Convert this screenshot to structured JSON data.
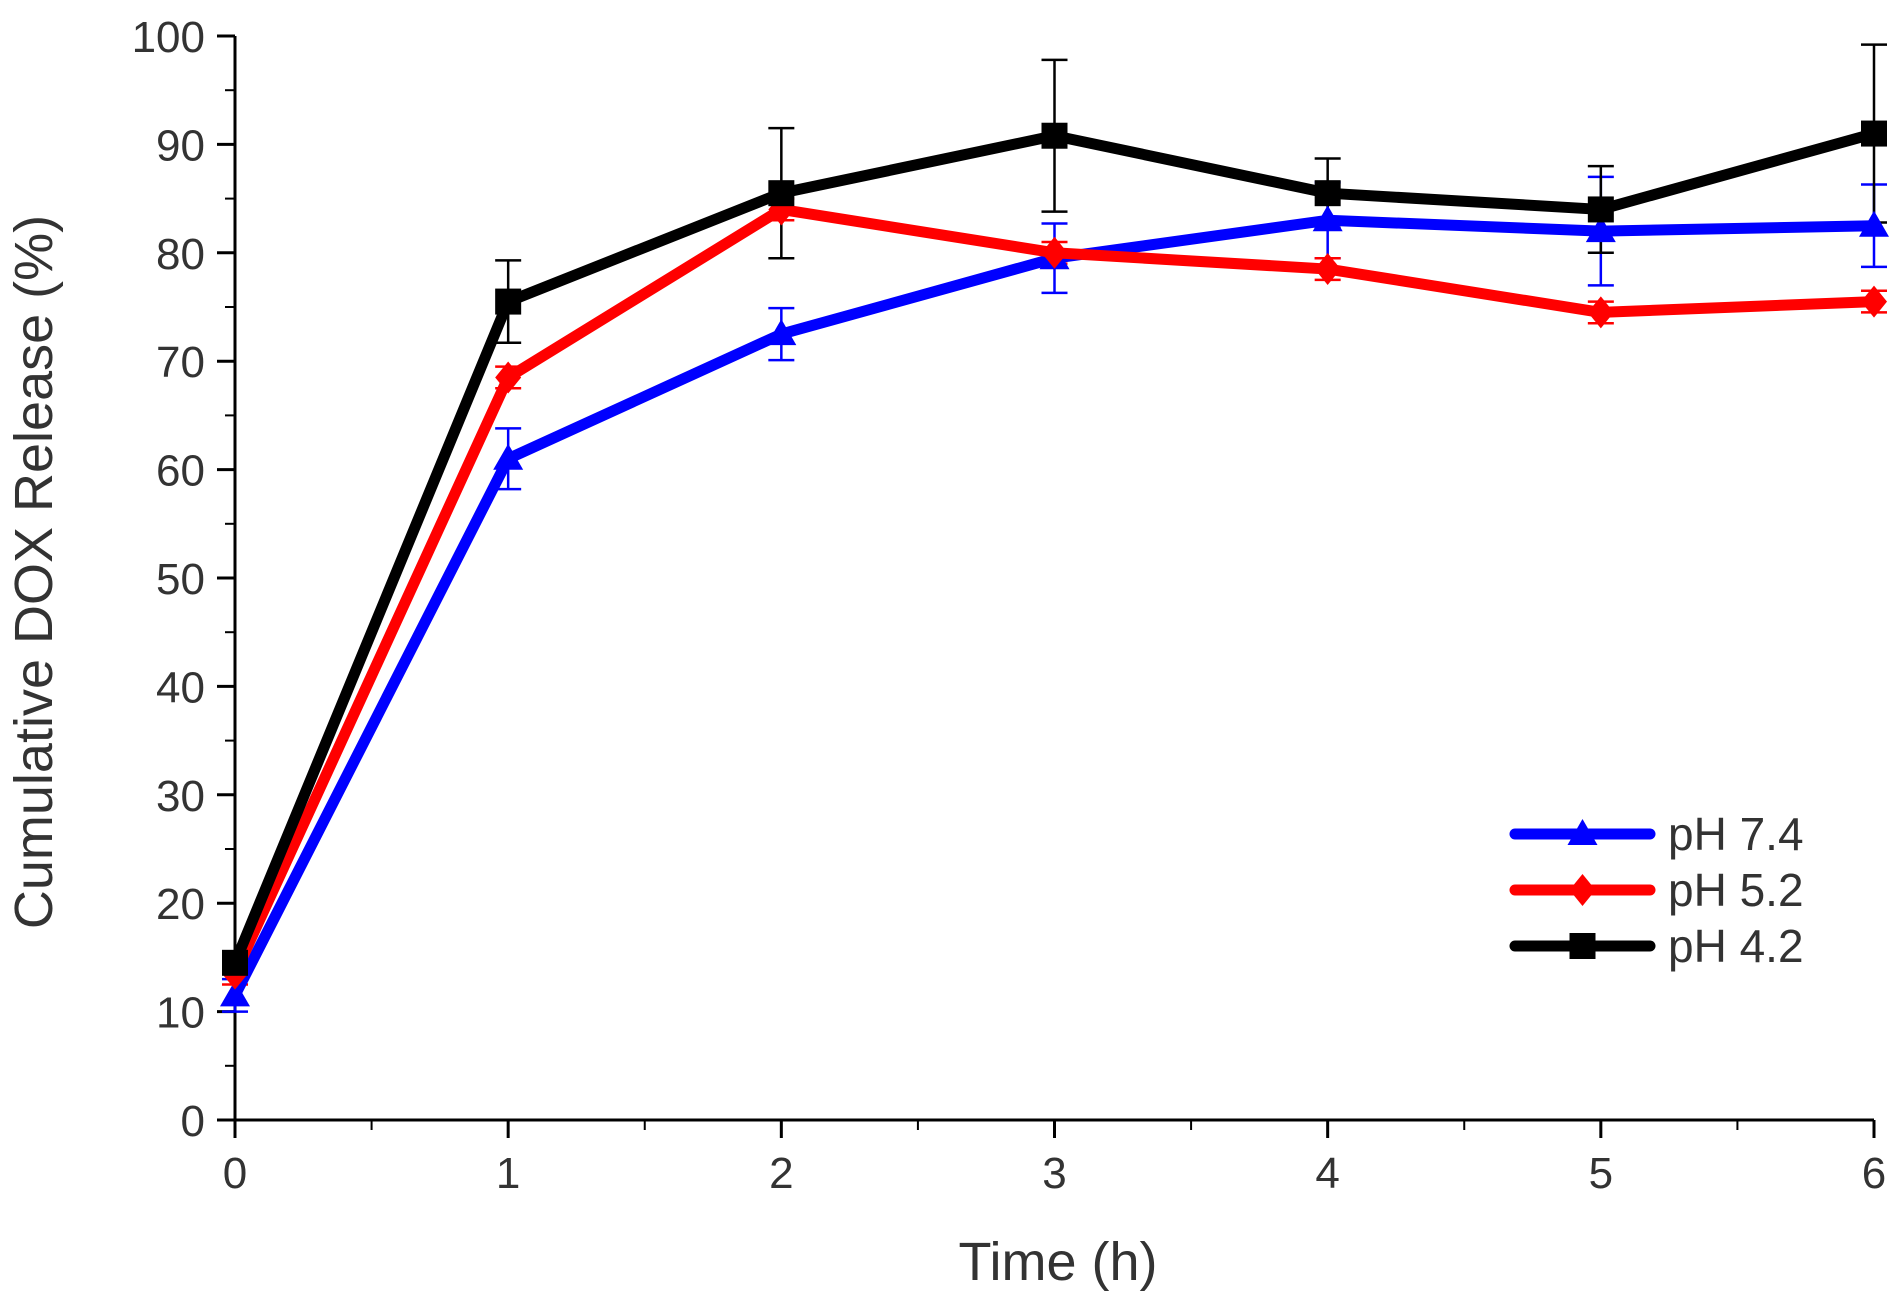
{
  "chart_data": {
    "type": "line",
    "title": "",
    "xlabel": "Time (h)",
    "ylabel": "Cumulative DOX Release (%)",
    "xlim": [
      0,
      6
    ],
    "ylim": [
      0,
      100
    ],
    "x_ticks": [
      "0",
      "1",
      "2",
      "3",
      "4",
      "5",
      "6"
    ],
    "y_ticks": [
      "0",
      "10",
      "20",
      "30",
      "40",
      "50",
      "60",
      "70",
      "80",
      "90",
      "100"
    ],
    "grid": false,
    "legend_position": "bottom-right",
    "x": [
      0,
      1,
      2,
      3,
      4,
      5,
      6
    ],
    "series": [
      {
        "name": "pH 7.4",
        "color": "#0000ff",
        "marker": "triangle",
        "values": [
          11.5,
          61,
          72.5,
          79.5,
          83,
          82,
          82.5
        ],
        "errors": [
          1.5,
          2.8,
          2.4,
          3.2,
          3.5,
          5,
          3.8
        ]
      },
      {
        "name": "pH 5.2",
        "color": "#ff0000",
        "marker": "diamond",
        "values": [
          13.5,
          68.5,
          84,
          80,
          78.5,
          74.5,
          75.5
        ],
        "errors": [
          1,
          1,
          1,
          1,
          1,
          1,
          1
        ]
      },
      {
        "name": "pH 4.2",
        "color": "#000000",
        "marker": "square",
        "values": [
          14.5,
          75.5,
          85.5,
          90.8,
          85.5,
          84,
          91
        ],
        "errors": [
          1,
          3.8,
          6,
          7,
          3.2,
          4,
          8.2
        ]
      }
    ]
  }
}
